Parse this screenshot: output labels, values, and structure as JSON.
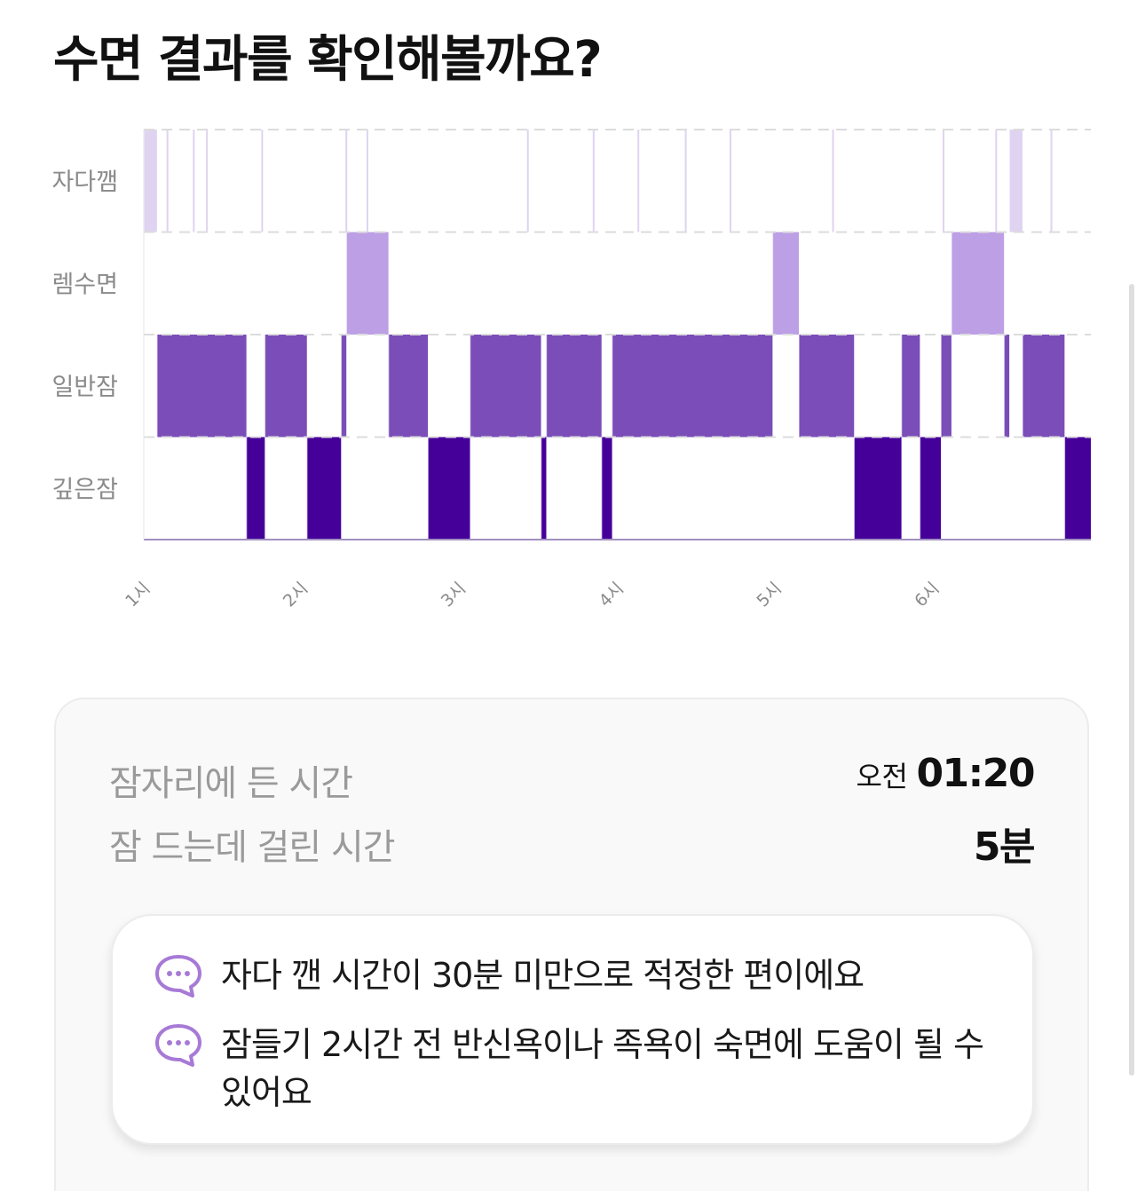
{
  "title": "수면 결과를 확인해볼까요?",
  "chart_data": {
    "type": "sleep-hypnogram",
    "stages": [
      "자다깸",
      "렘수면",
      "일반잠",
      "깊은잠"
    ],
    "x_ticks": [
      "1시",
      "2시",
      "3시",
      "4시",
      "5시",
      "6시"
    ],
    "x_range": [
      "01:00",
      "07:00"
    ],
    "colors": {
      "자다깸": "#dfd3f1",
      "렘수면": "#bd9fe6",
      "일반잠": "#7a4db8",
      "깊은잠": "#46009a"
    },
    "grid": "dashed horizontal lines between stages",
    "segments": [
      {
        "stage": "자다깸",
        "start": "01:00",
        "end": "01:05"
      },
      {
        "stage": "일반잠",
        "start": "01:05",
        "end": "01:39"
      },
      {
        "stage": "깊은잠",
        "start": "01:39",
        "end": "01:46"
      },
      {
        "stage": "일반잠",
        "start": "01:46",
        "end": "02:02"
      },
      {
        "stage": "깊은잠",
        "start": "02:02",
        "end": "02:15"
      },
      {
        "stage": "일반잠",
        "start": "02:15",
        "end": "02:17"
      },
      {
        "stage": "렘수면",
        "start": "02:17",
        "end": "02:33"
      },
      {
        "stage": "일반잠",
        "start": "02:33",
        "end": "02:48"
      },
      {
        "stage": "깊은잠",
        "start": "02:48",
        "end": "03:04"
      },
      {
        "stage": "일반잠",
        "start": "03:04",
        "end": "03:31"
      },
      {
        "stage": "깊은잠",
        "start": "03:31",
        "end": "03:33"
      },
      {
        "stage": "일반잠",
        "start": "03:33",
        "end": "03:54"
      },
      {
        "stage": "깊은잠",
        "start": "03:54",
        "end": "03:58"
      },
      {
        "stage": "일반잠",
        "start": "03:58",
        "end": "04:59"
      },
      {
        "stage": "렘수면",
        "start": "04:59",
        "end": "05:09"
      },
      {
        "stage": "일반잠",
        "start": "05:09",
        "end": "05:30"
      },
      {
        "stage": "깊은잠",
        "start": "05:30",
        "end": "05:48"
      },
      {
        "stage": "일반잠",
        "start": "05:48",
        "end": "05:55"
      },
      {
        "stage": "깊은잠",
        "start": "05:55",
        "end": "06:03"
      },
      {
        "stage": "일반잠",
        "start": "06:03",
        "end": "06:07"
      },
      {
        "stage": "렘수면",
        "start": "06:07",
        "end": "06:27"
      },
      {
        "stage": "일반잠",
        "start": "06:27",
        "end": "06:29"
      },
      {
        "stage": "자다깸",
        "start": "06:29",
        "end": "06:34"
      },
      {
        "stage": "일반잠",
        "start": "06:34",
        "end": "06:50"
      },
      {
        "stage": "깊은잠",
        "start": "06:50",
        "end": "07:00"
      }
    ],
    "boundaries": [
      "01:09",
      "01:19",
      "01:24",
      "01:45",
      "02:17",
      "02:25",
      "03:26",
      "03:51",
      "04:08",
      "04:26",
      "04:43",
      "05:22",
      "06:04",
      "06:24",
      "06:31",
      "06:45"
    ]
  },
  "summary": {
    "bedtime_label": "잠자리에 든 시간",
    "bedtime_period": "오전",
    "bedtime_value": "01:20",
    "latency_label": "잠 드는데 걸린 시간",
    "latency_value": "5분"
  },
  "tips": [
    {
      "icon": "chat-bubble-icon",
      "text": "자다 깬 시간이 30분 미만으로 적정한 편이에요"
    },
    {
      "icon": "chat-bubble-icon",
      "text": "잠들기 2시간 전 반신욕이나 족욕이 숙면에 도움이 될 수 있어요"
    }
  ],
  "icon_color": "#a77ad6"
}
